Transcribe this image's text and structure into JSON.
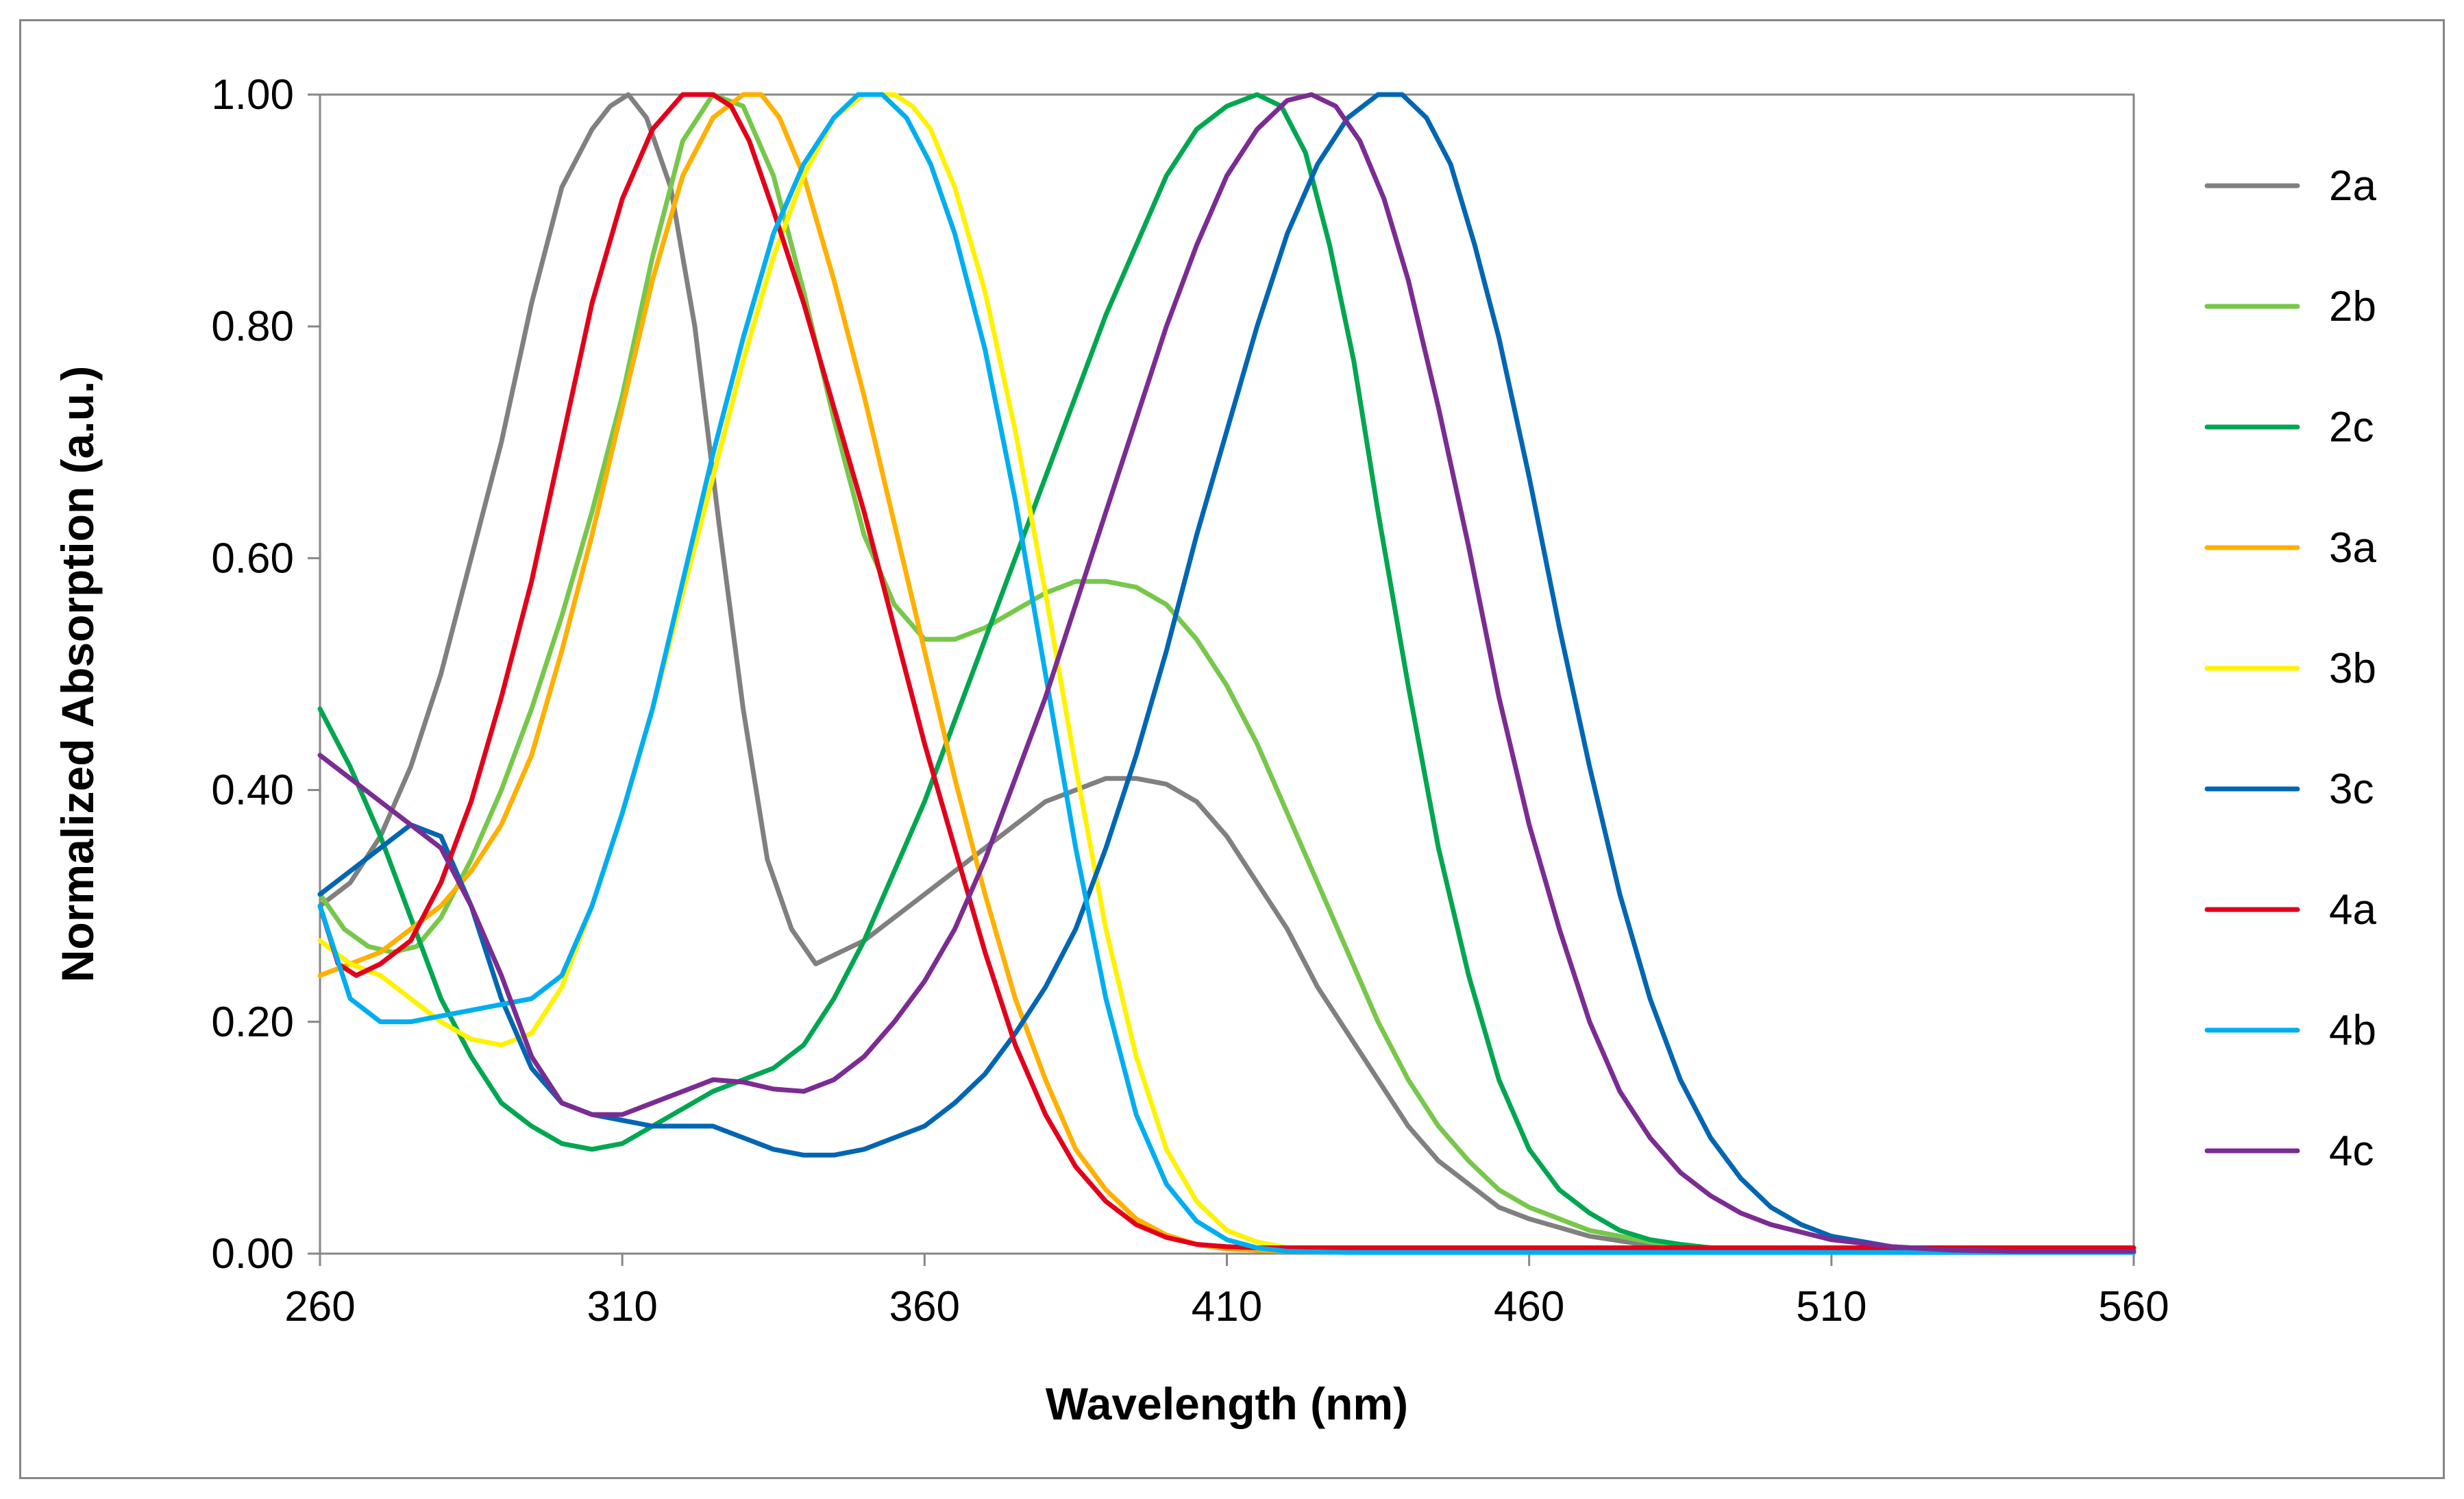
{
  "chart_data": {
    "type": "line",
    "title": "",
    "xlabel": "Wavelength (nm)",
    "ylabel": "Normalized Absorption (a.u.)",
    "xlim": [
      260,
      560
    ],
    "ylim": [
      0,
      1
    ],
    "xticks": [
      "260",
      "310",
      "360",
      "410",
      "460",
      "510",
      "560"
    ],
    "xtick_values": [
      260,
      310,
      360,
      410,
      460,
      510,
      560
    ],
    "yticks": [
      "0.00",
      "0.20",
      "0.40",
      "0.60",
      "0.80",
      "1.00"
    ],
    "ytick_values": [
      0,
      0.2,
      0.4,
      0.6,
      0.8,
      1.0
    ],
    "grid": false,
    "legend": "right",
    "series": [
      {
        "name": "2a",
        "color": "#808080",
        "x": [
          260,
          265,
          270,
          275,
          280,
          285,
          290,
          295,
          300,
          305,
          308,
          311,
          314,
          318,
          322,
          326,
          330,
          334,
          338,
          342,
          346,
          350,
          355,
          360,
          365,
          370,
          375,
          380,
          385,
          390,
          395,
          400,
          405,
          410,
          415,
          420,
          425,
          430,
          435,
          440,
          445,
          450,
          455,
          460,
          470,
          480,
          490,
          500,
          510,
          520,
          530,
          540,
          550,
          560
        ],
        "y": [
          0.3,
          0.32,
          0.36,
          0.42,
          0.5,
          0.6,
          0.7,
          0.82,
          0.92,
          0.97,
          0.99,
          1.0,
          0.98,
          0.92,
          0.8,
          0.63,
          0.47,
          0.34,
          0.28,
          0.25,
          0.26,
          0.27,
          0.29,
          0.31,
          0.33,
          0.35,
          0.37,
          0.39,
          0.4,
          0.41,
          0.41,
          0.405,
          0.39,
          0.36,
          0.32,
          0.28,
          0.23,
          0.19,
          0.15,
          0.11,
          0.08,
          0.06,
          0.04,
          0.03,
          0.015,
          0.007,
          0.004,
          0.003,
          0.002,
          0.002,
          0.002,
          0.002,
          0.002,
          0.002
        ]
      },
      {
        "name": "2b",
        "color": "#77C74B",
        "x": [
          260,
          264,
          268,
          272,
          276,
          280,
          285,
          290,
          295,
          300,
          305,
          310,
          315,
          320,
          325,
          330,
          335,
          340,
          345,
          350,
          355,
          360,
          365,
          370,
          375,
          380,
          385,
          390,
          395,
          400,
          405,
          410,
          415,
          420,
          425,
          430,
          435,
          440,
          445,
          450,
          455,
          460,
          465,
          470,
          480,
          490,
          500,
          510,
          520,
          530,
          540,
          550,
          560
        ],
        "y": [
          0.31,
          0.28,
          0.265,
          0.26,
          0.265,
          0.29,
          0.34,
          0.4,
          0.47,
          0.55,
          0.64,
          0.74,
          0.86,
          0.96,
          1.0,
          0.99,
          0.93,
          0.83,
          0.72,
          0.62,
          0.56,
          0.53,
          0.53,
          0.54,
          0.555,
          0.57,
          0.58,
          0.58,
          0.575,
          0.56,
          0.53,
          0.49,
          0.44,
          0.38,
          0.32,
          0.26,
          0.2,
          0.15,
          0.11,
          0.08,
          0.055,
          0.04,
          0.03,
          0.02,
          0.01,
          0.005,
          0.003,
          0.002,
          0.002,
          0.002,
          0.002,
          0.002,
          0.002
        ]
      },
      {
        "name": "2c",
        "color": "#00A650",
        "x": [
          260,
          265,
          270,
          275,
          280,
          285,
          290,
          295,
          300,
          305,
          310,
          315,
          320,
          325,
          330,
          335,
          340,
          345,
          350,
          355,
          360,
          365,
          370,
          375,
          380,
          385,
          390,
          395,
          400,
          405,
          410,
          415,
          419,
          423,
          427,
          431,
          435,
          440,
          445,
          450,
          455,
          460,
          465,
          470,
          475,
          480,
          485,
          490,
          500,
          510,
          520,
          530,
          540,
          550,
          560
        ],
        "y": [
          0.47,
          0.42,
          0.36,
          0.29,
          0.22,
          0.17,
          0.13,
          0.11,
          0.095,
          0.09,
          0.095,
          0.11,
          0.125,
          0.14,
          0.15,
          0.16,
          0.18,
          0.22,
          0.27,
          0.33,
          0.39,
          0.46,
          0.53,
          0.6,
          0.67,
          0.74,
          0.81,
          0.87,
          0.93,
          0.97,
          0.99,
          1.0,
          0.99,
          0.95,
          0.87,
          0.77,
          0.64,
          0.49,
          0.35,
          0.24,
          0.15,
          0.09,
          0.055,
          0.035,
          0.02,
          0.012,
          0.008,
          0.005,
          0.003,
          0.002,
          0.002,
          0.002,
          0.002,
          0.002,
          0.002
        ]
      },
      {
        "name": "3a",
        "color": "#FFB000",
        "x": [
          260,
          265,
          270,
          275,
          280,
          285,
          290,
          295,
          300,
          305,
          310,
          315,
          320,
          325,
          330,
          333,
          336,
          340,
          345,
          350,
          355,
          360,
          365,
          370,
          375,
          380,
          385,
          390,
          395,
          400,
          405,
          410,
          415,
          420,
          430,
          440,
          450,
          460,
          480,
          500,
          520,
          540,
          560
        ],
        "y": [
          0.24,
          0.25,
          0.26,
          0.28,
          0.3,
          0.33,
          0.37,
          0.43,
          0.52,
          0.62,
          0.73,
          0.84,
          0.93,
          0.98,
          1.0,
          1.0,
          0.98,
          0.93,
          0.84,
          0.74,
          0.63,
          0.52,
          0.41,
          0.31,
          0.22,
          0.15,
          0.09,
          0.055,
          0.03,
          0.016,
          0.008,
          0.004,
          0.003,
          0.002,
          0.002,
          0.002,
          0.002,
          0.002,
          0.002,
          0.002,
          0.002,
          0.002,
          0.002
        ]
      },
      {
        "name": "3b",
        "color": "#FFF200",
        "x": [
          260,
          265,
          270,
          275,
          280,
          285,
          290,
          295,
          300,
          305,
          310,
          315,
          320,
          325,
          330,
          335,
          340,
          345,
          350,
          355,
          358,
          361,
          365,
          370,
          375,
          380,
          385,
          390,
          395,
          400,
          405,
          410,
          415,
          420,
          430,
          440,
          450,
          460,
          480,
          500,
          520,
          540,
          560
        ],
        "y": [
          0.27,
          0.25,
          0.24,
          0.22,
          0.2,
          0.185,
          0.18,
          0.19,
          0.23,
          0.3,
          0.38,
          0.47,
          0.57,
          0.67,
          0.77,
          0.86,
          0.93,
          0.98,
          1.0,
          1.0,
          0.99,
          0.97,
          0.92,
          0.83,
          0.71,
          0.57,
          0.42,
          0.28,
          0.17,
          0.09,
          0.045,
          0.02,
          0.01,
          0.005,
          0.002,
          0.002,
          0.002,
          0.002,
          0.002,
          0.002,
          0.002,
          0.002,
          0.002
        ]
      },
      {
        "name": "3c",
        "color": "#0066B3",
        "x": [
          260,
          265,
          270,
          275,
          280,
          285,
          290,
          295,
          300,
          305,
          310,
          315,
          320,
          325,
          330,
          335,
          340,
          345,
          350,
          355,
          360,
          365,
          370,
          375,
          380,
          385,
          390,
          395,
          400,
          405,
          410,
          415,
          420,
          425,
          430,
          435,
          439,
          443,
          447,
          451,
          455,
          460,
          465,
          470,
          475,
          480,
          485,
          490,
          495,
          500,
          505,
          510,
          520,
          530,
          540,
          550,
          560
        ],
        "y": [
          0.31,
          0.33,
          0.35,
          0.37,
          0.36,
          0.3,
          0.22,
          0.16,
          0.13,
          0.12,
          0.115,
          0.11,
          0.11,
          0.11,
          0.1,
          0.09,
          0.085,
          0.085,
          0.09,
          0.1,
          0.11,
          0.13,
          0.155,
          0.19,
          0.23,
          0.28,
          0.35,
          0.43,
          0.52,
          0.62,
          0.71,
          0.8,
          0.88,
          0.94,
          0.98,
          1.0,
          1.0,
          0.98,
          0.94,
          0.87,
          0.79,
          0.67,
          0.54,
          0.42,
          0.31,
          0.22,
          0.15,
          0.1,
          0.065,
          0.04,
          0.025,
          0.015,
          0.006,
          0.003,
          0.002,
          0.002,
          0.002
        ]
      },
      {
        "name": "4a",
        "color": "#E2001A",
        "x": [
          260,
          263,
          266,
          270,
          275,
          280,
          285,
          290,
          295,
          300,
          305,
          310,
          315,
          320,
          325,
          328,
          331,
          335,
          340,
          345,
          350,
          355,
          360,
          365,
          370,
          375,
          380,
          385,
          390,
          395,
          400,
          405,
          410,
          415,
          420,
          430,
          440,
          450,
          460,
          480,
          500,
          520,
          540,
          560
        ],
        "y": [
          0.3,
          0.25,
          0.24,
          0.25,
          0.27,
          0.32,
          0.39,
          0.48,
          0.58,
          0.7,
          0.82,
          0.91,
          0.97,
          1.0,
          1.0,
          0.99,
          0.96,
          0.9,
          0.82,
          0.73,
          0.64,
          0.54,
          0.44,
          0.35,
          0.26,
          0.18,
          0.12,
          0.075,
          0.045,
          0.025,
          0.014,
          0.008,
          0.006,
          0.005,
          0.005,
          0.005,
          0.005,
          0.005,
          0.005,
          0.005,
          0.005,
          0.005,
          0.005,
          0.005
        ]
      },
      {
        "name": "4b",
        "color": "#00AEEF",
        "x": [
          260,
          265,
          270,
          275,
          280,
          285,
          290,
          295,
          300,
          305,
          310,
          315,
          320,
          325,
          330,
          335,
          340,
          345,
          349,
          353,
          357,
          361,
          365,
          370,
          375,
          380,
          385,
          390,
          395,
          400,
          405,
          410,
          415,
          420,
          430,
          440,
          450,
          460,
          480,
          500,
          520,
          540,
          560
        ],
        "y": [
          0.3,
          0.22,
          0.2,
          0.2,
          0.205,
          0.21,
          0.215,
          0.22,
          0.24,
          0.3,
          0.38,
          0.47,
          0.58,
          0.69,
          0.79,
          0.88,
          0.94,
          0.98,
          1.0,
          1.0,
          0.98,
          0.94,
          0.88,
          0.78,
          0.65,
          0.5,
          0.35,
          0.22,
          0.12,
          0.06,
          0.028,
          0.012,
          0.005,
          0.002,
          0.001,
          0.001,
          0.001,
          0.001,
          0.001,
          0.001,
          0.001,
          0.001,
          0.001
        ]
      },
      {
        "name": "4c",
        "color": "#7B2C92",
        "x": [
          260,
          265,
          270,
          275,
          280,
          285,
          290,
          295,
          300,
          305,
          310,
          315,
          320,
          325,
          330,
          335,
          340,
          345,
          350,
          355,
          360,
          365,
          370,
          375,
          380,
          385,
          390,
          395,
          400,
          405,
          410,
          415,
          420,
          424,
          428,
          432,
          436,
          440,
          445,
          450,
          455,
          460,
          465,
          470,
          475,
          480,
          485,
          490,
          495,
          500,
          510,
          520,
          530,
          540,
          550,
          560
        ],
        "y": [
          0.43,
          0.41,
          0.39,
          0.37,
          0.35,
          0.3,
          0.24,
          0.17,
          0.13,
          0.12,
          0.12,
          0.13,
          0.14,
          0.15,
          0.148,
          0.142,
          0.14,
          0.15,
          0.17,
          0.2,
          0.235,
          0.28,
          0.34,
          0.41,
          0.48,
          0.56,
          0.64,
          0.72,
          0.8,
          0.87,
          0.93,
          0.97,
          0.995,
          1.0,
          0.99,
          0.96,
          0.91,
          0.84,
          0.73,
          0.61,
          0.48,
          0.37,
          0.28,
          0.2,
          0.14,
          0.1,
          0.07,
          0.05,
          0.035,
          0.025,
          0.012,
          0.006,
          0.003,
          0.002,
          0.002,
          0.002
        ]
      }
    ]
  }
}
